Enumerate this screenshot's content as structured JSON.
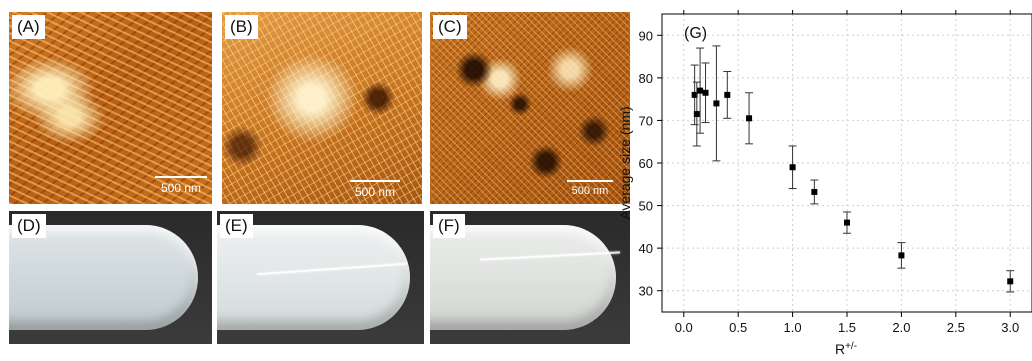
{
  "panels": {
    "a": {
      "label": "(A)",
      "scale": "500 nm"
    },
    "b": {
      "label": "(B)",
      "scale": "500 nm"
    },
    "c": {
      "label": "(C)",
      "scale": "500 nm"
    },
    "d": {
      "label": "(D)"
    },
    "e": {
      "label": "(E)"
    },
    "f": {
      "label": "(F)"
    }
  },
  "chart_data": {
    "type": "scatter",
    "panel_label": "(G)",
    "xlabel": "R+/-",
    "ylabel": "Average size (nm)",
    "xlim": [
      -0.2,
      3.2
    ],
    "ylim": [
      25,
      95
    ],
    "xticks": [
      "0.0",
      "0.5",
      "1.0",
      "1.5",
      "2.0",
      "2.5",
      "3.0"
    ],
    "yticks": [
      "30",
      "40",
      "50",
      "60",
      "70",
      "80",
      "90"
    ],
    "grid": true,
    "marker_color": "#000000",
    "points": [
      {
        "x": 0.1,
        "y": 76.0,
        "err": 7.0
      },
      {
        "x": 0.12,
        "y": 71.5,
        "err": 7.5
      },
      {
        "x": 0.15,
        "y": 77.0,
        "err": 10.0
      },
      {
        "x": 0.2,
        "y": 76.5,
        "err": 7.0
      },
      {
        "x": 0.3,
        "y": 74.0,
        "err": 13.5
      },
      {
        "x": 0.4,
        "y": 76.0,
        "err": 5.5
      },
      {
        "x": 0.6,
        "y": 70.5,
        "err": 6.0
      },
      {
        "x": 1.0,
        "y": 59.0,
        "err": 5.0
      },
      {
        "x": 1.2,
        "y": 53.2,
        "err": 2.8
      },
      {
        "x": 1.5,
        "y": 46.0,
        "err": 2.5
      },
      {
        "x": 2.0,
        "y": 38.3,
        "err": 3.0
      },
      {
        "x": 3.0,
        "y": 32.2,
        "err": 2.5
      }
    ]
  }
}
